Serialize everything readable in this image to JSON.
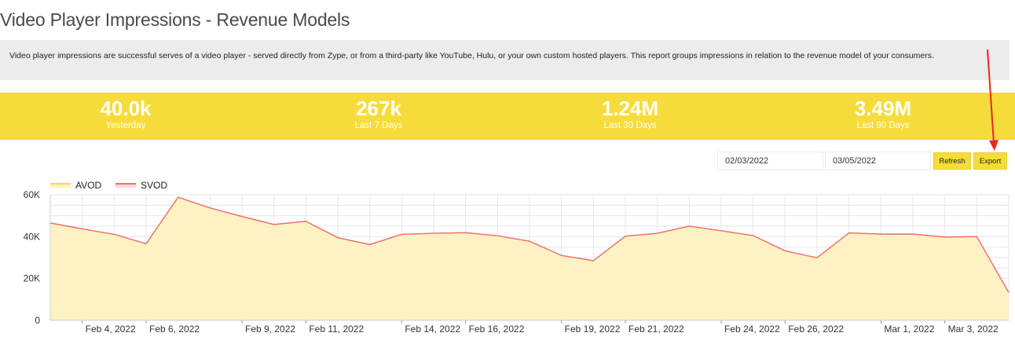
{
  "page": {
    "title": "Video Player Impressions - Revenue Models",
    "description": "Video player impressions are successful serves of a video player - served directly from Zype, or from a third-party like YouTube, Hulu, or your own custom hosted players. This report groups impressions in relation to the revenue model of your consumers."
  },
  "stats": [
    {
      "value": "40.0k",
      "label": "Yesterday"
    },
    {
      "value": "267k",
      "label": "Last 7 Days"
    },
    {
      "value": "1.24M",
      "label": "Last 30 Days"
    },
    {
      "value": "3.49M",
      "label": "Last 90 Days"
    }
  ],
  "controls": {
    "start_date": "02/03/2022",
    "end_date": "03/05/2022",
    "refresh_label": "Refresh",
    "export_label": "Export"
  },
  "colors": {
    "accent": "#f6dc3a",
    "avod_line": "#f6dc3a",
    "avod_fill": "#fcf2c4",
    "svod_line": "#f06a72",
    "annotation_arrow": "#e8281e"
  },
  "chart_data": {
    "type": "area",
    "legend": [
      {
        "name": "AVOD",
        "color": "#f6dc3a"
      },
      {
        "name": "SVOD",
        "color": "#f06a72"
      }
    ],
    "legend_position": "top-left",
    "grid": true,
    "y_ticks": [
      "0",
      "20K",
      "40K",
      "60K"
    ],
    "ylim": [
      0,
      60000
    ],
    "x_tick_labels": [
      {
        "label": "Feb 4, 2022",
        "date": "2022-02-04"
      },
      {
        "label": "Feb 6, 2022",
        "date": "2022-02-06"
      },
      {
        "label": "Feb 9, 2022",
        "date": "2022-02-09"
      },
      {
        "label": "Feb 11, 2022",
        "date": "2022-02-11"
      },
      {
        "label": "Feb 14, 2022",
        "date": "2022-02-14"
      },
      {
        "label": "Feb 16, 2022",
        "date": "2022-02-16"
      },
      {
        "label": "Feb 19, 2022",
        "date": "2022-02-19"
      },
      {
        "label": "Feb 21, 2022",
        "date": "2022-02-21"
      },
      {
        "label": "Feb 24, 2022",
        "date": "2022-02-24"
      },
      {
        "label": "Feb 26, 2022",
        "date": "2022-02-26"
      },
      {
        "label": "Mar 1, 2022",
        "date": "2022-03-01"
      },
      {
        "label": "Mar 3, 2022",
        "date": "2022-03-03"
      }
    ],
    "x": [
      "2022-02-03",
      "2022-02-04",
      "2022-02-05",
      "2022-02-06",
      "2022-02-07",
      "2022-02-08",
      "2022-02-09",
      "2022-02-10",
      "2022-02-11",
      "2022-02-12",
      "2022-02-13",
      "2022-02-14",
      "2022-02-15",
      "2022-02-16",
      "2022-02-17",
      "2022-02-18",
      "2022-02-19",
      "2022-02-20",
      "2022-02-21",
      "2022-02-22",
      "2022-02-23",
      "2022-02-24",
      "2022-02-25",
      "2022-02-26",
      "2022-02-27",
      "2022-02-28",
      "2022-03-01",
      "2022-03-02",
      "2022-03-03",
      "2022-03-04",
      "2022-03-05"
    ],
    "series": [
      {
        "name": "AVOD",
        "values": [
          46500,
          43700,
          41100,
          36600,
          58800,
          53700,
          49600,
          45800,
          47300,
          39500,
          36200,
          41100,
          41600,
          41900,
          40400,
          37800,
          31000,
          28500,
          40200,
          41600,
          45000,
          42800,
          40500,
          33200,
          29900,
          41800,
          41200,
          41200,
          39800,
          40000,
          13300
        ]
      },
      {
        "name": "SVOD",
        "values": [
          46500,
          43700,
          41100,
          36600,
          58800,
          53700,
          49600,
          45800,
          47300,
          39500,
          36200,
          41100,
          41600,
          41900,
          40400,
          37800,
          31000,
          28500,
          40200,
          41600,
          45000,
          42800,
          40500,
          33200,
          29900,
          41800,
          41200,
          41200,
          39800,
          40000,
          13300
        ]
      }
    ]
  }
}
